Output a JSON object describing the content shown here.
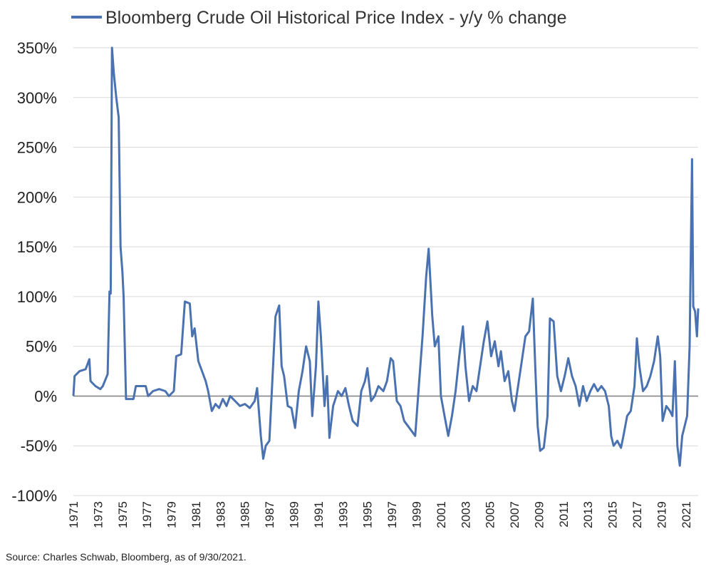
{
  "chart_data": {
    "type": "line",
    "series": [
      {
        "name": "Bloomberg Crude Oil Historical Price Index - y/y % change",
        "color": "#4a72b0",
        "points": [
          [
            1971.0,
            0
          ],
          [
            1971.1,
            20
          ],
          [
            1971.5,
            25
          ],
          [
            1972.0,
            27
          ],
          [
            1972.3,
            37
          ],
          [
            1972.4,
            15
          ],
          [
            1972.8,
            10
          ],
          [
            1973.2,
            7
          ],
          [
            1973.4,
            10
          ],
          [
            1973.8,
            22
          ],
          [
            1973.95,
            105
          ],
          [
            1974.05,
            103
          ],
          [
            1974.15,
            350
          ],
          [
            1974.3,
            325
          ],
          [
            1974.5,
            300
          ],
          [
            1974.7,
            280
          ],
          [
            1974.85,
            150
          ],
          [
            1975.0,
            125
          ],
          [
            1975.1,
            100
          ],
          [
            1975.3,
            -3
          ],
          [
            1975.9,
            -3
          ],
          [
            1976.1,
            10
          ],
          [
            1976.9,
            10
          ],
          [
            1977.1,
            0
          ],
          [
            1977.5,
            5
          ],
          [
            1978.0,
            7
          ],
          [
            1978.5,
            5
          ],
          [
            1978.8,
            0
          ],
          [
            1979.2,
            5
          ],
          [
            1979.4,
            40
          ],
          [
            1979.8,
            42
          ],
          [
            1980.1,
            95
          ],
          [
            1980.5,
            93
          ],
          [
            1980.7,
            60
          ],
          [
            1980.9,
            68
          ],
          [
            1981.2,
            35
          ],
          [
            1981.5,
            25
          ],
          [
            1981.8,
            15
          ],
          [
            1982.0,
            5
          ],
          [
            1982.3,
            -15
          ],
          [
            1982.6,
            -8
          ],
          [
            1982.9,
            -12
          ],
          [
            1983.2,
            -3
          ],
          [
            1983.5,
            -10
          ],
          [
            1983.8,
            0
          ],
          [
            1984.2,
            -5
          ],
          [
            1984.6,
            -10
          ],
          [
            1985.0,
            -8
          ],
          [
            1985.4,
            -12
          ],
          [
            1985.8,
            -5
          ],
          [
            1986.0,
            8
          ],
          [
            1986.3,
            -40
          ],
          [
            1986.5,
            -63
          ],
          [
            1986.7,
            -50
          ],
          [
            1987.0,
            -45
          ],
          [
            1987.3,
            30
          ],
          [
            1987.5,
            80
          ],
          [
            1987.8,
            91
          ],
          [
            1988.0,
            30
          ],
          [
            1988.2,
            20
          ],
          [
            1988.5,
            -10
          ],
          [
            1988.8,
            -12
          ],
          [
            1989.1,
            -32
          ],
          [
            1989.4,
            5
          ],
          [
            1989.7,
            25
          ],
          [
            1990.0,
            50
          ],
          [
            1990.3,
            35
          ],
          [
            1990.5,
            -20
          ],
          [
            1990.8,
            30
          ],
          [
            1991.0,
            95
          ],
          [
            1991.2,
            60
          ],
          [
            1991.5,
            -10
          ],
          [
            1991.7,
            20
          ],
          [
            1991.9,
            -42
          ],
          [
            1992.2,
            -10
          ],
          [
            1992.6,
            5
          ],
          [
            1992.9,
            0
          ],
          [
            1993.2,
            8
          ],
          [
            1993.5,
            -10
          ],
          [
            1993.8,
            -25
          ],
          [
            1994.2,
            -30
          ],
          [
            1994.5,
            5
          ],
          [
            1994.8,
            15
          ],
          [
            1995.0,
            28
          ],
          [
            1995.3,
            -5
          ],
          [
            1995.6,
            0
          ],
          [
            1995.9,
            10
          ],
          [
            1996.3,
            5
          ],
          [
            1996.6,
            15
          ],
          [
            1996.9,
            38
          ],
          [
            1997.1,
            35
          ],
          [
            1997.4,
            -5
          ],
          [
            1997.7,
            -10
          ],
          [
            1998.0,
            -25
          ],
          [
            1998.3,
            -30
          ],
          [
            1998.6,
            -35
          ],
          [
            1998.9,
            -40
          ],
          [
            1999.2,
            10
          ],
          [
            1999.5,
            60
          ],
          [
            1999.8,
            120
          ],
          [
            2000.0,
            148
          ],
          [
            2000.3,
            80
          ],
          [
            2000.5,
            50
          ],
          [
            2000.8,
            60
          ],
          [
            2001.0,
            0
          ],
          [
            2001.3,
            -20
          ],
          [
            2001.6,
            -40
          ],
          [
            2001.9,
            -20
          ],
          [
            2002.2,
            5
          ],
          [
            2002.5,
            40
          ],
          [
            2002.8,
            70
          ],
          [
            2003.0,
            30
          ],
          [
            2003.3,
            -5
          ],
          [
            2003.6,
            10
          ],
          [
            2003.9,
            5
          ],
          [
            2004.2,
            30
          ],
          [
            2004.5,
            55
          ],
          [
            2004.8,
            75
          ],
          [
            2005.1,
            40
          ],
          [
            2005.4,
            55
          ],
          [
            2005.7,
            30
          ],
          [
            2005.9,
            45
          ],
          [
            2006.2,
            15
          ],
          [
            2006.5,
            25
          ],
          [
            2006.8,
            -5
          ],
          [
            2007.0,
            -15
          ],
          [
            2007.3,
            10
          ],
          [
            2007.6,
            35
          ],
          [
            2007.9,
            60
          ],
          [
            2008.2,
            65
          ],
          [
            2008.5,
            98
          ],
          [
            2008.7,
            30
          ],
          [
            2008.9,
            -30
          ],
          [
            2009.1,
            -55
          ],
          [
            2009.4,
            -52
          ],
          [
            2009.7,
            -20
          ],
          [
            2009.9,
            78
          ],
          [
            2010.2,
            75
          ],
          [
            2010.5,
            20
          ],
          [
            2010.8,
            5
          ],
          [
            2011.1,
            20
          ],
          [
            2011.4,
            38
          ],
          [
            2011.7,
            20
          ],
          [
            2012.0,
            10
          ],
          [
            2012.3,
            -10
          ],
          [
            2012.6,
            10
          ],
          [
            2012.9,
            -5
          ],
          [
            2013.2,
            5
          ],
          [
            2013.5,
            12
          ],
          [
            2013.8,
            5
          ],
          [
            2014.1,
            10
          ],
          [
            2014.4,
            5
          ],
          [
            2014.7,
            -10
          ],
          [
            2014.9,
            -40
          ],
          [
            2015.1,
            -50
          ],
          [
            2015.4,
            -45
          ],
          [
            2015.7,
            -52
          ],
          [
            2015.9,
            -40
          ],
          [
            2016.2,
            -20
          ],
          [
            2016.5,
            -15
          ],
          [
            2016.8,
            10
          ],
          [
            2017.0,
            58
          ],
          [
            2017.2,
            30
          ],
          [
            2017.5,
            5
          ],
          [
            2017.8,
            10
          ],
          [
            2018.1,
            20
          ],
          [
            2018.4,
            35
          ],
          [
            2018.7,
            60
          ],
          [
            2018.9,
            40
          ],
          [
            2019.1,
            -25
          ],
          [
            2019.4,
            -10
          ],
          [
            2019.7,
            -15
          ],
          [
            2019.9,
            -20
          ],
          [
            2020.1,
            35
          ],
          [
            2020.3,
            -50
          ],
          [
            2020.5,
            -70
          ],
          [
            2020.7,
            -40
          ],
          [
            2020.9,
            -30
          ],
          [
            2021.1,
            -20
          ],
          [
            2021.3,
            50
          ],
          [
            2021.5,
            238
          ],
          [
            2021.6,
            90
          ],
          [
            2021.75,
            85
          ],
          [
            2021.9,
            60
          ],
          [
            2022.0,
            88
          ]
        ]
      }
    ],
    "x_ticks": [
      "1971",
      "1973",
      "1975",
      "1977",
      "1979",
      "1981",
      "1983",
      "1985",
      "1987",
      "1989",
      "1991",
      "1993",
      "1995",
      "1997",
      "1999",
      "2001",
      "2003",
      "2005",
      "2007",
      "2009",
      "2011",
      "2013",
      "2015",
      "2017",
      "2019",
      "2021"
    ],
    "y_ticks": [
      "350%",
      "300%",
      "250%",
      "200%",
      "150%",
      "100%",
      "50%",
      "0%",
      "-50%",
      "-100%"
    ],
    "xlim": [
      1971,
      2022
    ],
    "ylim": [
      -100,
      350
    ],
    "grid": "horizontal",
    "legend": "top",
    "source": "Source: Charles Schwab, Bloomberg, as of 9/30/2021."
  }
}
